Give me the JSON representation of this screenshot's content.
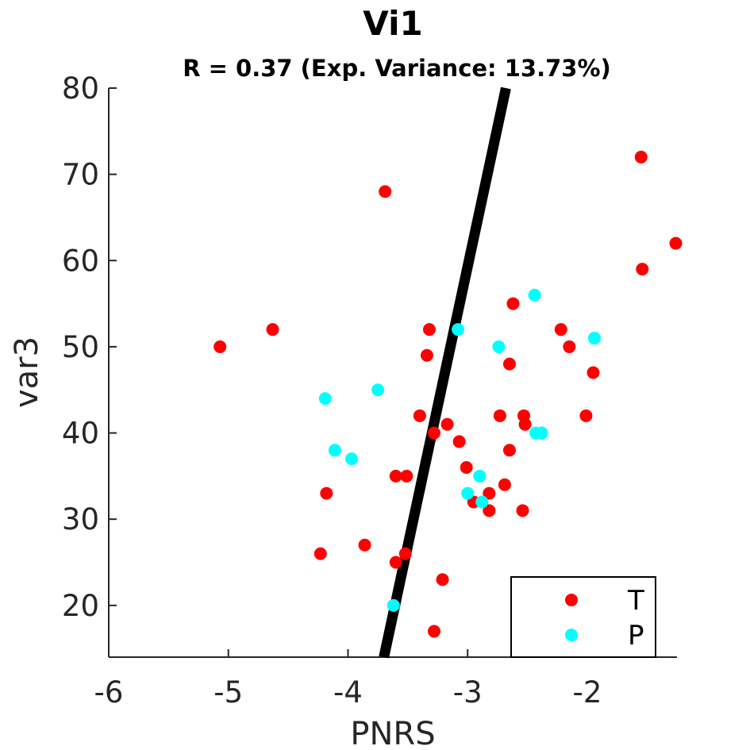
{
  "chart_data": {
    "type": "scatter",
    "title": "Vi1",
    "subtitle": "R = 0.37 (Exp. Variance: 13.73%)",
    "xlabel": "PNRS",
    "ylabel": "var3",
    "xlim": [
      -6,
      -1.25
    ],
    "ylim": [
      14,
      80
    ],
    "xticks": [
      -6,
      -5,
      -4,
      -3,
      -2
    ],
    "yticks": [
      20,
      30,
      40,
      50,
      60,
      70,
      80
    ],
    "xtick_labels": [
      "-6",
      "-5",
      "-4",
      "-3",
      "-2"
    ],
    "ytick_labels": [
      "20",
      "30",
      "40",
      "50",
      "60",
      "70",
      "80"
    ],
    "grid": false,
    "legend_position": "bottom-right",
    "series": [
      {
        "name": "T",
        "color": "#ff0000",
        "points": [
          [
            -5.07,
            50
          ],
          [
            -4.63,
            52
          ],
          [
            -4.23,
            26
          ],
          [
            -4.18,
            33
          ],
          [
            -3.86,
            27
          ],
          [
            -3.69,
            68
          ],
          [
            -3.6,
            35
          ],
          [
            -3.6,
            25
          ],
          [
            -3.51,
            35
          ],
          [
            -3.52,
            26
          ],
          [
            -3.4,
            42
          ],
          [
            -3.34,
            49
          ],
          [
            -3.32,
            52
          ],
          [
            -3.28,
            40
          ],
          [
            -3.28,
            17
          ],
          [
            -3.21,
            23
          ],
          [
            -3.17,
            41
          ],
          [
            -3.07,
            39
          ],
          [
            -3.01,
            36
          ],
          [
            -2.95,
            32
          ],
          [
            -2.82,
            33
          ],
          [
            -2.82,
            31
          ],
          [
            -2.73,
            42
          ],
          [
            -2.69,
            34
          ],
          [
            -2.65,
            48
          ],
          [
            -2.65,
            38
          ],
          [
            -2.62,
            55
          ],
          [
            -2.53,
            42
          ],
          [
            -2.52,
            41
          ],
          [
            -2.54,
            31
          ],
          [
            -2.22,
            52
          ],
          [
            -2.15,
            50
          ],
          [
            -2.01,
            42
          ],
          [
            -1.95,
            47
          ],
          [
            -1.55,
            72
          ],
          [
            -1.54,
            59
          ],
          [
            -1.26,
            62
          ]
        ]
      },
      {
        "name": "P",
        "color": "#00ffff",
        "points": [
          [
            -4.19,
            44
          ],
          [
            -4.11,
            38
          ],
          [
            -3.97,
            37
          ],
          [
            -3.75,
            45
          ],
          [
            -3.62,
            20
          ],
          [
            -3.08,
            52
          ],
          [
            -3.0,
            33
          ],
          [
            -2.9,
            35
          ],
          [
            -2.88,
            32
          ],
          [
            -2.74,
            50
          ],
          [
            -2.44,
            56
          ],
          [
            -2.43,
            40
          ],
          [
            -2.38,
            40
          ],
          [
            -1.94,
            51
          ]
        ]
      }
    ],
    "fit_line": {
      "color": "#000000",
      "points": [
        [
          -3.7,
          14
        ],
        [
          -2.68,
          80
        ]
      ]
    }
  }
}
